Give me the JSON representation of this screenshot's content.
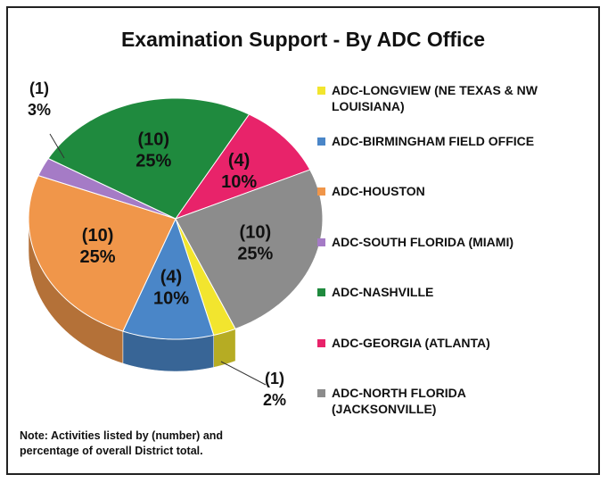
{
  "chart_data": {
    "type": "pie3d",
    "title": "Examination Support - By ADC Office",
    "categories": [
      "ADC-LONGVIEW (NE TEXAS & NW LOUISIANA)",
      "ADC-BIRMINGHAM FIELD OFFICE",
      "ADC-HOUSTON",
      "ADC-SOUTH FLORIDA (MIAMI)",
      "ADC-NASHVILLE",
      "ADC-GEORGIA (ATLANTA)",
      "ADC-NORTH FLORIDA (JACKSONVILLE)"
    ],
    "values": [
      1,
      4,
      10,
      1,
      10,
      4,
      10
    ],
    "value_labels": [
      "(1)",
      "(4)",
      "(10)",
      "(1)",
      "(10)",
      "(4)",
      "(10)"
    ],
    "percentages": [
      2,
      10,
      25,
      3,
      25,
      10,
      25
    ],
    "percentage_labels": [
      "2%",
      "10%",
      "25%",
      "3%",
      "25%",
      "10%",
      "25%"
    ],
    "colors": [
      "#f2e52e",
      "#4a86c8",
      "#f0964a",
      "#a57bc6",
      "#1f8a3e",
      "#e8236a",
      "#8c8c8c"
    ],
    "legend": "right",
    "note": "Note: Activities listed by (number) and percentage of overall District total."
  }
}
